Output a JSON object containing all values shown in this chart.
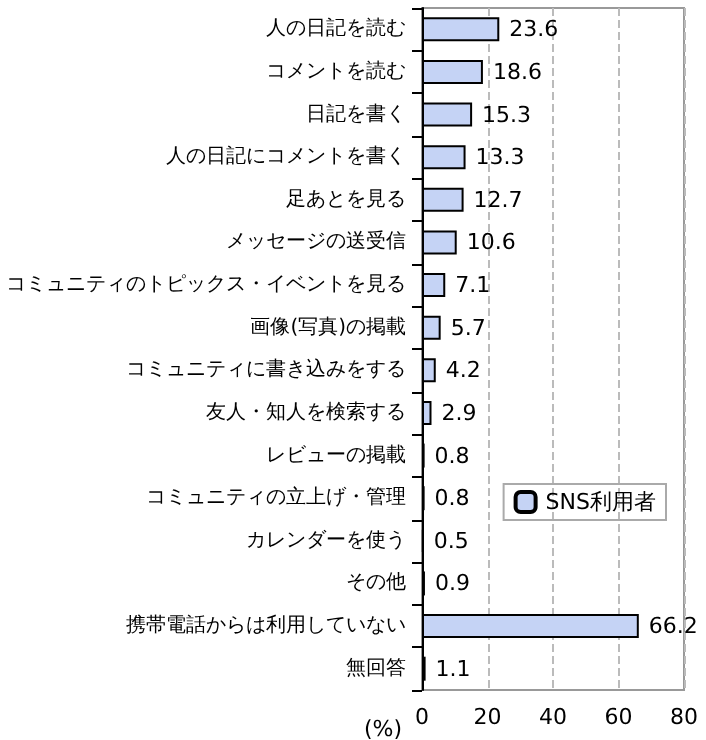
{
  "chart_data": {
    "type": "bar",
    "orientation": "horizontal",
    "categories": [
      "人の日記を読む",
      "コメントを読む",
      "日記を書く",
      "人の日記にコメントを書く",
      "足あとを見る",
      "メッセージの送受信",
      "コミュニティのトピックス・イベントを見る",
      "画像(写真)の掲載",
      "コミュニティに書き込みをする",
      "友人・知人を検索する",
      "レビューの掲載",
      "コミュニティの立上げ・管理",
      "カレンダーを使う",
      "その他",
      "携帯電話からは利用していない",
      "無回答"
    ],
    "series": [
      {
        "name": "SNS利用者",
        "color": "#c5d3f5",
        "values": [
          23.6,
          18.6,
          15.3,
          13.3,
          12.7,
          10.6,
          7.1,
          5.7,
          4.2,
          2.9,
          0.8,
          0.8,
          0.5,
          0.9,
          66.2,
          1.1
        ]
      }
    ],
    "xlabel": "(%)",
    "xlim": [
      0,
      80
    ],
    "xticks": [
      0,
      20,
      40,
      60,
      80
    ],
    "grid": "x",
    "legend": "right",
    "data_labels": true
  }
}
